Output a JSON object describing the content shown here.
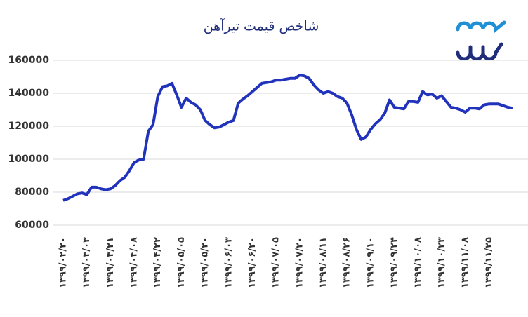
{
  "chart_data": {
    "type": "line",
    "title": "شاخص قیمت تیرآهن",
    "categories": [
      "۱۳۹۹/۰۲/۲۰",
      null,
      null,
      null,
      null,
      "۱۳۹۹/۰۳/۰۳",
      null,
      null,
      null,
      null,
      "۱۳۹۹/۰۳/۲۱",
      null,
      null,
      null,
      null,
      "۱۳۹۹/۰۴/۰۸",
      null,
      null,
      null,
      null,
      "۱۳۹۹/۰۴/۲۲",
      null,
      null,
      null,
      null,
      "۱۳۹۹/۰۵/۰۵",
      null,
      null,
      null,
      null,
      "۱۳۹۹/۰۵/۲۰",
      null,
      null,
      null,
      null,
      "۱۳۹۹/۰۶/۰۳",
      null,
      null,
      null,
      null,
      "۱۳۹۹/۰۶/۲۰",
      null,
      null,
      null,
      null,
      "۱۳۹۹/۰۷/۰۵",
      null,
      null,
      null,
      null,
      "۱۳۹۹/۰۷/۲۰",
      null,
      null,
      null,
      null,
      "۱۳۹۹/۰۸/۱۱",
      null,
      null,
      null,
      null,
      "۱۳۹۹/۰۸/۲۶",
      null,
      null,
      null,
      null,
      "۱۳۹۹/۰۹/۱۰",
      null,
      null,
      null,
      null,
      "۱۳۹۹/۰۹/۲۴",
      null,
      null,
      null,
      null,
      "۱۳۹۹/۱۰/۰۸",
      null,
      null,
      null,
      null,
      "۱۳۹۹/۱۰/۲۳",
      null,
      null,
      null,
      null,
      "۱۳۹۹/۱۱/۰۸",
      null,
      null,
      null,
      null,
      "۱۳۹۹/۱۱/۲۵",
      null,
      null,
      null,
      null,
      null
    ],
    "values": [
      75000,
      76000,
      77500,
      79000,
      79500,
      78500,
      83000,
      83000,
      82000,
      81500,
      82000,
      84000,
      87000,
      89000,
      93000,
      98000,
      99500,
      100000,
      117000,
      121000,
      138000,
      144000,
      144500,
      146000,
      139000,
      131500,
      137000,
      134500,
      133000,
      130000,
      123500,
      121000,
      119000,
      119500,
      121000,
      122500,
      123500,
      134000,
      136500,
      138500,
      141000,
      143500,
      146000,
      146500,
      147000,
      148000,
      148000,
      148500,
      149000,
      149000,
      151000,
      150500,
      149000,
      145000,
      142000,
      140000,
      141000,
      140000,
      138000,
      137000,
      134000,
      127000,
      118000,
      112000,
      113500,
      118000,
      121500,
      124000,
      128000,
      136000,
      131500,
      131000,
      130500,
      135000,
      135000,
      134500,
      141000,
      139000,
      139500,
      137000,
      138500,
      135000,
      131500,
      131000,
      130000,
      128500,
      131000,
      131000,
      130500,
      133000,
      133500,
      133500,
      133500,
      132500,
      131500,
      131000
    ],
    "color": "#2233bb",
    "ylim": [
      60000,
      160000
    ],
    "yticks": [
      60000,
      80000,
      100000,
      120000,
      140000,
      160000
    ],
    "grid": true
  }
}
